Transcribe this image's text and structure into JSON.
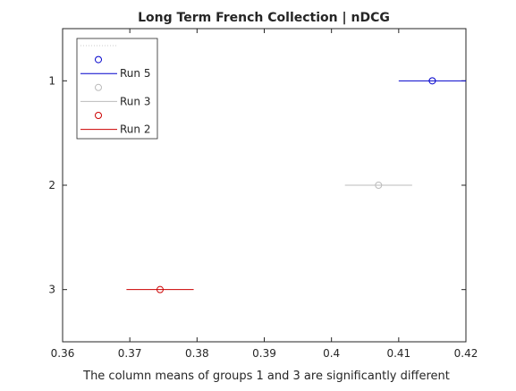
{
  "chart_data": {
    "type": "scatter",
    "title": "Long Term French Collection | nDCG",
    "xlabel": "The column means of groups 1 and 3 are significantly different",
    "ylabel": "",
    "xlim": [
      0.36,
      0.42
    ],
    "ylim": [
      0.5,
      3.5
    ],
    "y_reversed": true,
    "grid": false,
    "legend_position": "top-left",
    "x_ticks": [
      "0.36",
      "0.37",
      "0.38",
      "0.39",
      "0.4",
      "0.41",
      "0.42"
    ],
    "y_ticks": [
      "1",
      "2",
      "3"
    ],
    "groups": [
      {
        "group": 1,
        "mean": 0.415,
        "ci_low": 0.41,
        "ci_high": 0.42,
        "color": "#0000cc"
      },
      {
        "group": 2,
        "mean": 0.407,
        "ci_low": 0.402,
        "ci_high": 0.412,
        "color": "#bbbbbb"
      },
      {
        "group": 3,
        "mean": 0.3745,
        "ci_low": 0.3695,
        "ci_high": 0.3795,
        "color": "#cc0000"
      }
    ],
    "legend": [
      {
        "kind": "empty-line",
        "label": "",
        "color": "#bbbbbb"
      },
      {
        "kind": "marker",
        "label": "",
        "color": "#0000cc"
      },
      {
        "kind": "line",
        "label": "Run 5",
        "color": "#0000cc"
      },
      {
        "kind": "marker",
        "label": "",
        "color": "#bbbbbb"
      },
      {
        "kind": "line",
        "label": "Run 3",
        "color": "#bbbbbb"
      },
      {
        "kind": "marker",
        "label": "",
        "color": "#cc0000"
      },
      {
        "kind": "line",
        "label": "Run 2",
        "color": "#cc0000"
      }
    ]
  }
}
